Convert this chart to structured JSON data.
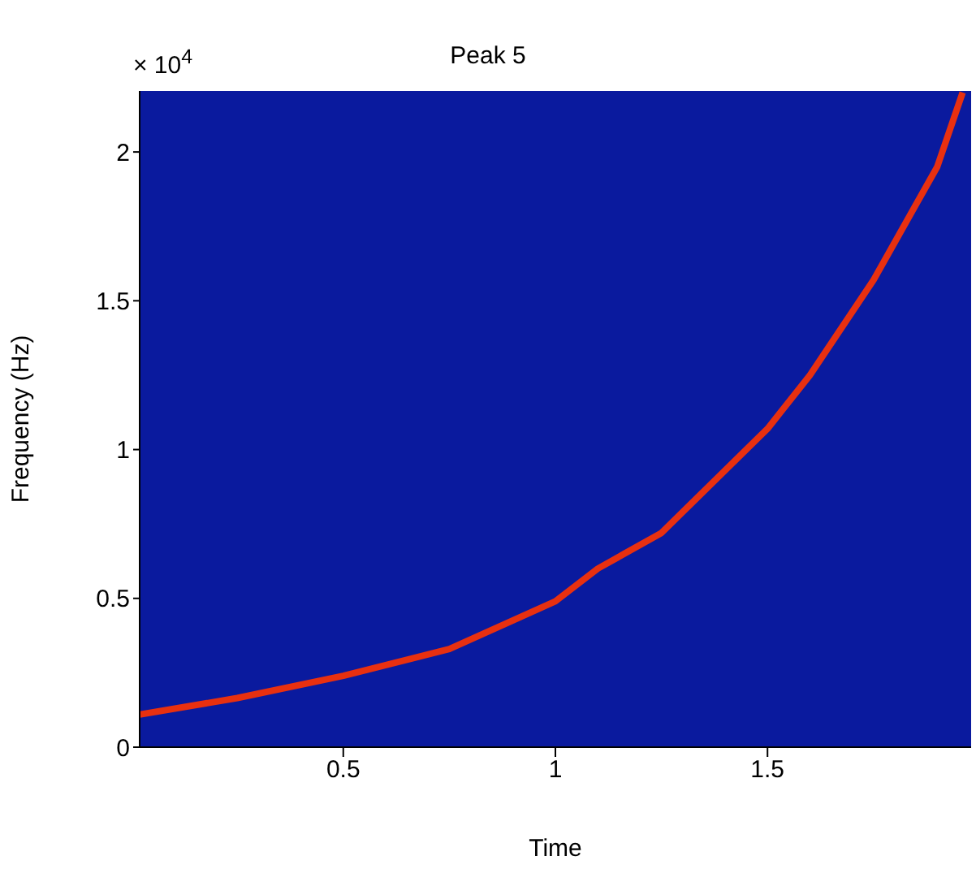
{
  "chart_data": {
    "type": "line",
    "title": "Peak 5",
    "xlabel": "Time",
    "ylabel": "Frequency (Hz)",
    "annotations": [
      "× 10$^{4}$"
    ],
    "x": [
      0.02,
      0.25,
      0.5,
      0.75,
      1,
      1.1,
      1.25,
      1.5,
      1.6,
      1.75,
      1.9,
      1.96
    ],
    "series": [
      {
        "color": "#e83010",
        "values": [
          0.11,
          0.165,
          0.24,
          0.33,
          0.49,
          0.6,
          0.72,
          1.07,
          1.25,
          1.57,
          1.95,
          2.2
        ]
      }
    ],
    "xlim": [
      0.02,
      1.98
    ],
    "xticks": [
      0.5,
      1,
      1.5
    ],
    "ylim": [
      0,
      2.205
    ],
    "yticks": [
      0,
      0.5,
      1,
      1.5,
      2
    ],
    "line_style": "solid"
  }
}
